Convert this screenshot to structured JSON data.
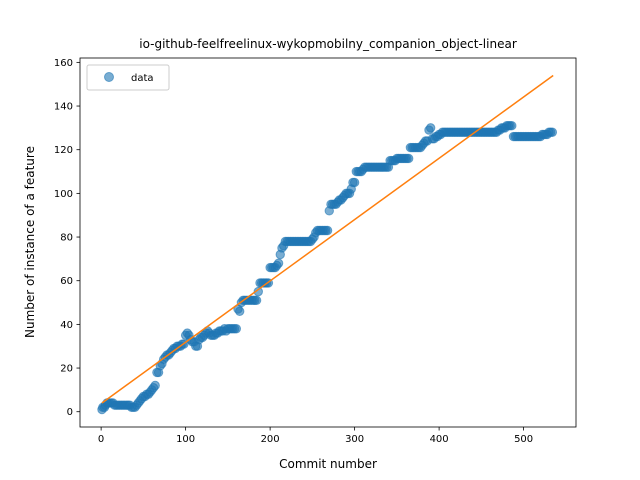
{
  "chart_data": {
    "type": "scatter",
    "title": "io-github-feelfreelinux-wykopmobilny_companion_object-linear",
    "xlabel": "Commit number",
    "ylabel": "Number of instance of a feature",
    "xlim": [
      -25,
      562
    ],
    "ylim": [
      -7,
      162
    ],
    "xticks": [
      0,
      100,
      200,
      300,
      400,
      500
    ],
    "yticks": [
      0,
      20,
      40,
      60,
      80,
      100,
      120,
      140,
      160
    ],
    "legend": {
      "position": "top-left",
      "entries": [
        "data"
      ]
    },
    "grid": false,
    "series": [
      {
        "name": "data",
        "style": "scatter",
        "color": "#1f77b4",
        "points": [
          [
            1,
            1
          ],
          [
            2,
            2
          ],
          [
            4,
            2
          ],
          [
            5,
            3
          ],
          [
            7,
            4
          ],
          [
            8,
            4
          ],
          [
            10,
            4
          ],
          [
            12,
            4
          ],
          [
            14,
            4
          ],
          [
            16,
            3
          ],
          [
            18,
            3
          ],
          [
            20,
            3
          ],
          [
            22,
            3
          ],
          [
            24,
            3
          ],
          [
            26,
            3
          ],
          [
            28,
            3
          ],
          [
            30,
            3
          ],
          [
            32,
            3
          ],
          [
            34,
            3
          ],
          [
            36,
            2
          ],
          [
            38,
            2
          ],
          [
            40,
            2
          ],
          [
            42,
            3
          ],
          [
            44,
            4
          ],
          [
            46,
            5
          ],
          [
            48,
            6
          ],
          [
            50,
            7
          ],
          [
            52,
            7
          ],
          [
            54,
            8
          ],
          [
            56,
            8
          ],
          [
            58,
            9
          ],
          [
            60,
            10
          ],
          [
            62,
            11
          ],
          [
            64,
            12
          ],
          [
            66,
            18
          ],
          [
            68,
            18
          ],
          [
            70,
            21
          ],
          [
            72,
            22
          ],
          [
            74,
            24
          ],
          [
            76,
            25
          ],
          [
            78,
            26
          ],
          [
            80,
            26
          ],
          [
            82,
            27
          ],
          [
            84,
            28
          ],
          [
            86,
            29
          ],
          [
            88,
            29
          ],
          [
            90,
            30
          ],
          [
            92,
            30
          ],
          [
            94,
            30
          ],
          [
            96,
            31
          ],
          [
            98,
            31
          ],
          [
            100,
            35
          ],
          [
            102,
            36
          ],
          [
            104,
            35
          ],
          [
            106,
            33
          ],
          [
            108,
            32
          ],
          [
            110,
            32
          ],
          [
            112,
            30
          ],
          [
            114,
            30
          ],
          [
            116,
            33
          ],
          [
            118,
            34
          ],
          [
            120,
            34
          ],
          [
            122,
            35
          ],
          [
            124,
            36
          ],
          [
            126,
            37
          ],
          [
            128,
            36
          ],
          [
            130,
            35
          ],
          [
            132,
            35
          ],
          [
            134,
            35
          ],
          [
            136,
            36
          ],
          [
            138,
            36
          ],
          [
            140,
            37
          ],
          [
            142,
            37
          ],
          [
            144,
            37
          ],
          [
            146,
            38
          ],
          [
            148,
            37
          ],
          [
            150,
            38
          ],
          [
            152,
            38
          ],
          [
            154,
            38
          ],
          [
            156,
            38
          ],
          [
            158,
            38
          ],
          [
            160,
            38
          ],
          [
            162,
            47
          ],
          [
            164,
            46
          ],
          [
            166,
            50
          ],
          [
            168,
            51
          ],
          [
            170,
            51
          ],
          [
            172,
            51
          ],
          [
            174,
            51
          ],
          [
            176,
            51
          ],
          [
            178,
            51
          ],
          [
            180,
            51
          ],
          [
            182,
            51
          ],
          [
            184,
            51
          ],
          [
            186,
            55
          ],
          [
            188,
            59
          ],
          [
            190,
            59
          ],
          [
            192,
            59
          ],
          [
            194,
            59
          ],
          [
            196,
            59
          ],
          [
            198,
            59
          ],
          [
            200,
            66
          ],
          [
            202,
            66
          ],
          [
            204,
            66
          ],
          [
            206,
            66
          ],
          [
            208,
            67
          ],
          [
            210,
            68
          ],
          [
            212,
            72
          ],
          [
            214,
            75
          ],
          [
            216,
            76
          ],
          [
            218,
            78
          ],
          [
            220,
            78
          ],
          [
            222,
            78
          ],
          [
            224,
            78
          ],
          [
            226,
            78
          ],
          [
            228,
            78
          ],
          [
            230,
            78
          ],
          [
            232,
            78
          ],
          [
            234,
            78
          ],
          [
            236,
            78
          ],
          [
            238,
            78
          ],
          [
            240,
            78
          ],
          [
            242,
            78
          ],
          [
            244,
            78
          ],
          [
            246,
            78
          ],
          [
            248,
            78
          ],
          [
            250,
            79
          ],
          [
            252,
            80
          ],
          [
            254,
            82
          ],
          [
            256,
            83
          ],
          [
            258,
            83
          ],
          [
            260,
            83
          ],
          [
            262,
            83
          ],
          [
            264,
            83
          ],
          [
            266,
            83
          ],
          [
            268,
            83
          ],
          [
            270,
            92
          ],
          [
            272,
            95
          ],
          [
            274,
            95
          ],
          [
            276,
            95
          ],
          [
            278,
            95
          ],
          [
            280,
            96
          ],
          [
            282,
            97
          ],
          [
            284,
            97
          ],
          [
            286,
            98
          ],
          [
            288,
            99
          ],
          [
            290,
            100
          ],
          [
            292,
            100
          ],
          [
            294,
            100
          ],
          [
            296,
            102
          ],
          [
            298,
            105
          ],
          [
            300,
            105
          ],
          [
            302,
            110
          ],
          [
            304,
            110
          ],
          [
            306,
            110
          ],
          [
            308,
            110
          ],
          [
            310,
            111
          ],
          [
            312,
            112
          ],
          [
            314,
            112
          ],
          [
            316,
            112
          ],
          [
            318,
            112
          ],
          [
            320,
            112
          ],
          [
            322,
            112
          ],
          [
            324,
            112
          ],
          [
            326,
            112
          ],
          [
            328,
            112
          ],
          [
            330,
            112
          ],
          [
            332,
            112
          ],
          [
            334,
            112
          ],
          [
            336,
            112
          ],
          [
            338,
            112
          ],
          [
            340,
            112
          ],
          [
            342,
            115
          ],
          [
            344,
            115
          ],
          [
            346,
            115
          ],
          [
            348,
            115
          ],
          [
            350,
            116
          ],
          [
            352,
            116
          ],
          [
            354,
            116
          ],
          [
            356,
            116
          ],
          [
            358,
            116
          ],
          [
            360,
            116
          ],
          [
            362,
            116
          ],
          [
            364,
            116
          ],
          [
            366,
            121
          ],
          [
            368,
            121
          ],
          [
            370,
            121
          ],
          [
            372,
            121
          ],
          [
            374,
            121
          ],
          [
            376,
            121
          ],
          [
            378,
            121
          ],
          [
            380,
            122
          ],
          [
            382,
            123
          ],
          [
            384,
            124
          ],
          [
            386,
            124
          ],
          [
            388,
            129
          ],
          [
            390,
            130
          ],
          [
            392,
            125
          ],
          [
            394,
            125
          ],
          [
            396,
            126
          ],
          [
            398,
            126
          ],
          [
            400,
            127
          ],
          [
            402,
            127
          ],
          [
            404,
            128
          ],
          [
            406,
            128
          ],
          [
            408,
            128
          ],
          [
            410,
            128
          ],
          [
            412,
            128
          ],
          [
            414,
            128
          ],
          [
            416,
            128
          ],
          [
            418,
            128
          ],
          [
            420,
            128
          ],
          [
            422,
            128
          ],
          [
            424,
            128
          ],
          [
            426,
            128
          ],
          [
            428,
            128
          ],
          [
            430,
            128
          ],
          [
            432,
            128
          ],
          [
            434,
            128
          ],
          [
            436,
            128
          ],
          [
            438,
            128
          ],
          [
            440,
            128
          ],
          [
            442,
            128
          ],
          [
            444,
            128
          ],
          [
            446,
            128
          ],
          [
            448,
            128
          ],
          [
            450,
            128
          ],
          [
            452,
            128
          ],
          [
            454,
            128
          ],
          [
            456,
            128
          ],
          [
            458,
            128
          ],
          [
            460,
            128
          ],
          [
            462,
            128
          ],
          [
            464,
            128
          ],
          [
            466,
            128
          ],
          [
            468,
            128
          ],
          [
            470,
            129
          ],
          [
            472,
            129
          ],
          [
            474,
            130
          ],
          [
            476,
            130
          ],
          [
            478,
            130
          ],
          [
            480,
            131
          ],
          [
            482,
            131
          ],
          [
            484,
            131
          ],
          [
            486,
            131
          ],
          [
            488,
            126
          ],
          [
            490,
            126
          ],
          [
            492,
            126
          ],
          [
            494,
            126
          ],
          [
            496,
            126
          ],
          [
            498,
            126
          ],
          [
            500,
            126
          ],
          [
            502,
            126
          ],
          [
            504,
            126
          ],
          [
            506,
            126
          ],
          [
            508,
            126
          ],
          [
            510,
            126
          ],
          [
            512,
            126
          ],
          [
            514,
            126
          ],
          [
            516,
            126
          ],
          [
            518,
            126
          ],
          [
            520,
            126
          ],
          [
            522,
            127
          ],
          [
            524,
            127
          ],
          [
            526,
            127
          ],
          [
            528,
            127
          ],
          [
            530,
            128
          ],
          [
            532,
            128
          ],
          [
            534,
            128
          ]
        ]
      },
      {
        "name": "",
        "style": "line",
        "color": "#ff7f0e",
        "points": [
          [
            1,
            4
          ],
          [
            535,
            154
          ]
        ]
      }
    ]
  }
}
